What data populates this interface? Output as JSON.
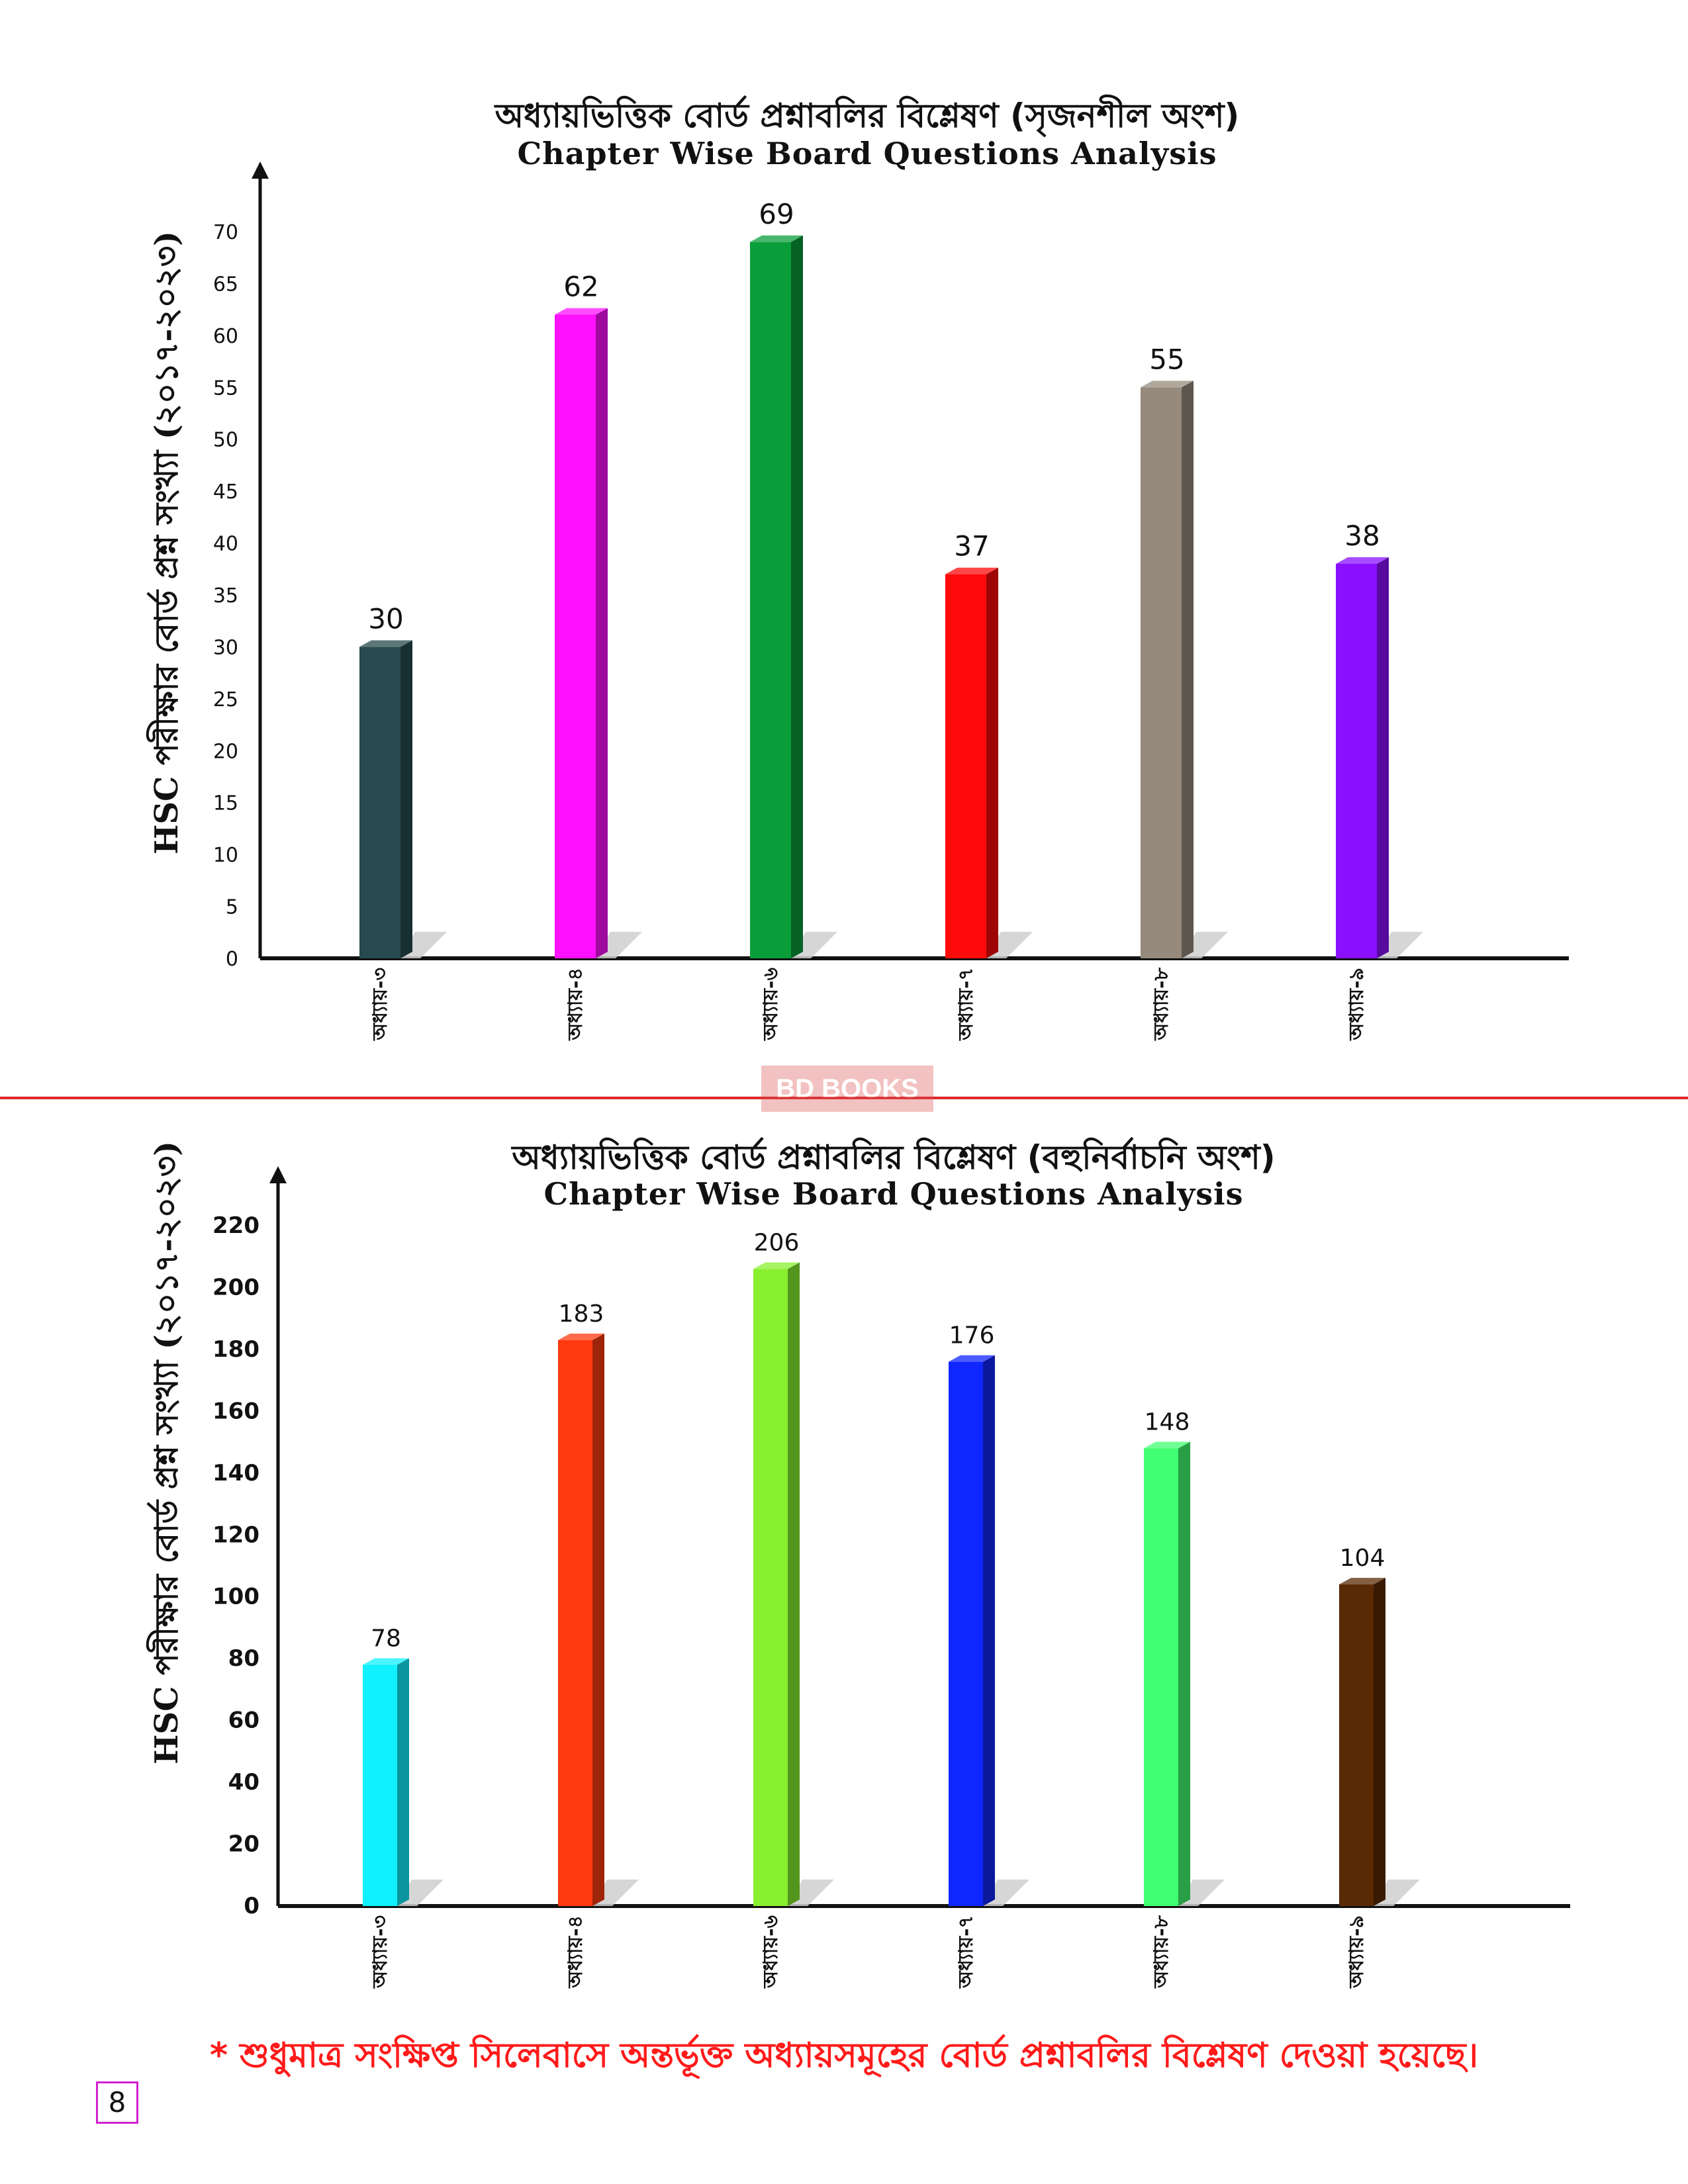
{
  "chart_data": [
    {
      "type": "bar",
      "title": "অধ্যায়ভিত্তিক বোর্ড প্রশ্নাবলির বিশ্লেষণ (সৃজনশীল অংশ)",
      "subtitle": "Chapter Wise Board Questions Analysis",
      "xlabel": "",
      "ylabel": "HSC পরীক্ষার বোর্ড প্রশ্ন সংখ্যা (২০১৭-২০২৩)",
      "ylim": [
        0,
        70
      ],
      "yticks": [
        "0",
        "5",
        "10",
        "15",
        "20",
        "25",
        "30",
        "35",
        "40",
        "45",
        "50",
        "55",
        "60",
        "65",
        "70"
      ],
      "categories": [
        "অধ্যায়-৩",
        "অধ্যায়-৪",
        "অধ্যায়-৬",
        "অধ্যায়-৭",
        "অধ্যায়-৮",
        "অধ্যায়-৯"
      ],
      "values": [
        30,
        62,
        69,
        37,
        55,
        38
      ],
      "data_labels": [
        "30",
        "62",
        "69",
        "37",
        "55",
        "38"
      ],
      "colors": [
        "#264a4d",
        "#ff10ff",
        "#0a9e3a",
        "#ff0a0a",
        "#968a7c",
        "#8a10ff"
      ],
      "grid": false,
      "legend": "none"
    },
    {
      "type": "bar",
      "title": "অধ্যায়ভিত্তিক বোর্ড প্রশ্নাবলির বিশ্লেষণ (বহুনির্বাচনি অংশ)",
      "subtitle": "Chapter Wise Board Questions Analysis",
      "xlabel": "",
      "ylabel": "HSC পরীক্ষার বোর্ড প্রশ্ন সংখ্যা (২০১৭-২০২৩)",
      "ylim": [
        0,
        220
      ],
      "yticks": [
        "0",
        "20",
        "40",
        "60",
        "80",
        "100",
        "120",
        "140",
        "160",
        "180",
        "200",
        "220"
      ],
      "categories": [
        "অধ্যায়-৩",
        "অধ্যায়-৪",
        "অধ্যায়-৬",
        "অধ্যায়-৭",
        "অধ্যায়-৮",
        "অধ্যায়-৯"
      ],
      "values": [
        78,
        183,
        206,
        176,
        148,
        104
      ],
      "data_labels": [
        "78",
        "183",
        "206",
        "176",
        "148",
        "104"
      ],
      "colors": [
        "#10f0ff",
        "#ff3a10",
        "#88f030",
        "#1026ff",
        "#40ff70",
        "#5a2a05"
      ],
      "grid": false,
      "legend": "none"
    }
  ],
  "watermark": "BD BOOKS",
  "footer_note": "* শুধুমাত্র সংক্ষিপ্ত সিলেবাসে অন্তর্ভূক্ত অধ্যায়সমূহের বোর্ড প্রশ্নাবলির বিশ্লেষণ দেওয়া হয়েছে।",
  "page_number": "8"
}
